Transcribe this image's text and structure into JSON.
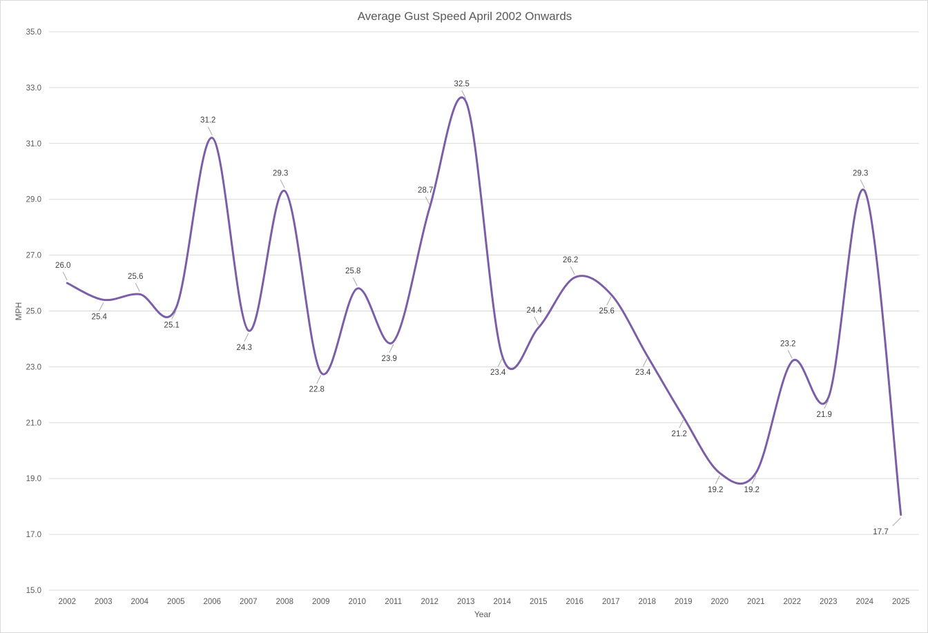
{
  "chart_data": {
    "type": "line",
    "smooth": true,
    "title": "Average Gust Speed April 2002 Onwards",
    "xlabel": "Year",
    "ylabel": "MPH",
    "categories": [
      "2002",
      "2003",
      "2004",
      "2005",
      "2006",
      "2007",
      "2008",
      "2009",
      "2010",
      "2011",
      "2012",
      "2013",
      "2014",
      "2015",
      "2016",
      "2017",
      "2018",
      "2019",
      "2020",
      "2021",
      "2022",
      "2023",
      "2024",
      "2025"
    ],
    "series": [
      {
        "values": [
          26.0,
          25.4,
          25.6,
          25.1,
          31.2,
          24.3,
          29.3,
          22.8,
          25.8,
          23.9,
          28.7,
          32.5,
          23.4,
          24.4,
          26.2,
          25.6,
          23.4,
          21.2,
          19.2,
          19.2,
          23.2,
          21.9,
          29.3,
          17.7
        ],
        "labels": [
          "26.0",
          "25.4",
          "25.6",
          "25.1",
          "31.2",
          "24.3",
          "29.3",
          "22.8",
          "25.8",
          "23.9",
          "28.7",
          "32.5",
          "23.4",
          "24.4",
          "26.2",
          "25.6",
          "23.4",
          "21.2",
          "19.2",
          "19.2",
          "23.2",
          "21.9",
          "29.3",
          "17.7"
        ]
      }
    ],
    "ylim": [
      15.0,
      35.0
    ],
    "yticks": [
      "15.0",
      "17.0",
      "19.0",
      "21.0",
      "23.0",
      "25.0",
      "27.0",
      "29.0",
      "31.0",
      "33.0",
      "35.0"
    ],
    "grid": true,
    "legend": "none",
    "colors": {
      "line": "#7b5ea7",
      "grid": "#d9d9d9",
      "text": "#595959",
      "leader": "#a6a6a6"
    }
  }
}
